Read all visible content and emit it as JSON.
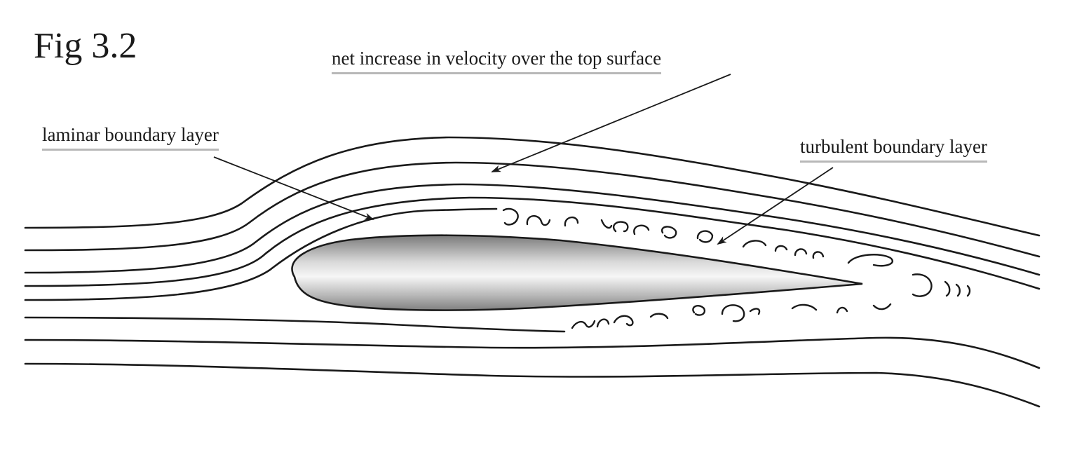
{
  "figure": {
    "title": "Fig 3.2"
  },
  "callouts": {
    "velocity": "net increase in velocity over the top surface",
    "laminar": "laminar boundary layer",
    "turbulent": "turbulent boundary layer"
  },
  "colors": {
    "ink": "#1a1a1a",
    "underline": "#b8b8b8",
    "airfoil_light": "#f4f4f4",
    "airfoil_dark": "#8c8c8c"
  }
}
